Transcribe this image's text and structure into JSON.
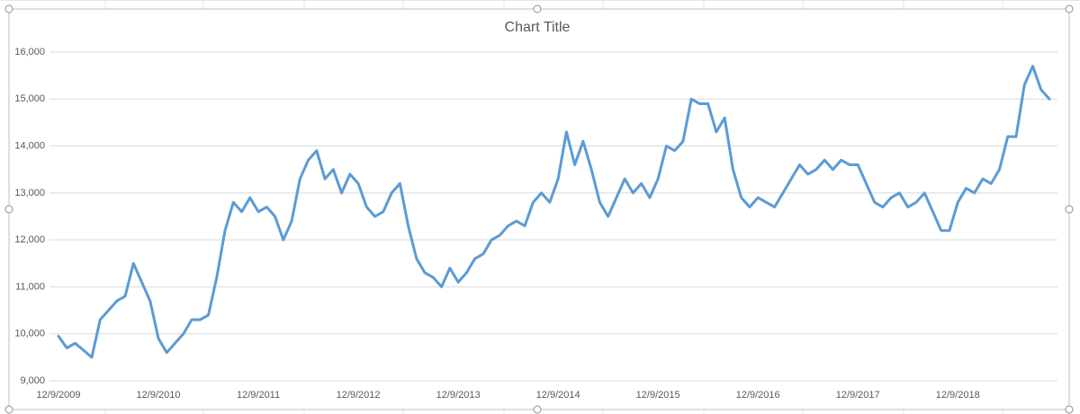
{
  "chart_data": {
    "type": "line",
    "title": "Chart Title",
    "color": "#5b9bd5",
    "grid": true,
    "x": [
      "12/9/2009",
      "1/9/2010",
      "2/9/2010",
      "3/9/2010",
      "4/9/2010",
      "5/9/2010",
      "6/9/2010",
      "7/9/2010",
      "8/9/2010",
      "9/9/2010",
      "10/9/2010",
      "11/9/2010",
      "12/9/2010",
      "1/9/2011",
      "2/9/2011",
      "3/9/2011",
      "4/9/2011",
      "5/9/2011",
      "6/9/2011",
      "7/9/2011",
      "8/9/2011",
      "9/9/2011",
      "10/9/2011",
      "11/9/2011",
      "12/9/2011",
      "1/9/2012",
      "2/9/2012",
      "3/9/2012",
      "4/9/2012",
      "5/9/2012",
      "6/9/2012",
      "7/9/2012",
      "8/9/2012",
      "9/9/2012",
      "10/9/2012",
      "11/9/2012",
      "12/9/2012",
      "1/9/2013",
      "2/9/2013",
      "3/9/2013",
      "4/9/2013",
      "5/9/2013",
      "6/9/2013",
      "7/9/2013",
      "8/9/2013",
      "9/9/2013",
      "10/9/2013",
      "11/9/2013",
      "12/9/2013",
      "1/9/2014",
      "2/9/2014",
      "3/9/2014",
      "4/9/2014",
      "5/9/2014",
      "6/9/2014",
      "7/9/2014",
      "8/9/2014",
      "9/9/2014",
      "10/9/2014",
      "11/9/2014",
      "12/9/2014",
      "1/9/2015",
      "2/9/2015",
      "3/9/2015",
      "4/9/2015",
      "5/9/2015",
      "6/9/2015",
      "7/9/2015",
      "8/9/2015",
      "9/9/2015",
      "10/9/2015",
      "11/9/2015",
      "12/9/2015",
      "1/9/2016",
      "2/9/2016",
      "3/9/2016",
      "4/9/2016",
      "5/9/2016",
      "6/9/2016",
      "7/9/2016",
      "8/9/2016",
      "9/9/2016",
      "10/9/2016",
      "11/9/2016",
      "12/9/2016",
      "1/9/2017",
      "2/9/2017",
      "3/9/2017",
      "4/9/2017",
      "5/9/2017",
      "6/9/2017",
      "7/9/2017",
      "8/9/2017",
      "9/9/2017",
      "10/9/2017",
      "11/9/2017",
      "12/9/2017",
      "1/9/2018",
      "2/9/2018",
      "3/9/2018",
      "4/9/2018",
      "5/9/2018",
      "6/9/2018",
      "7/9/2018",
      "8/9/2018",
      "9/9/2018",
      "10/9/2018",
      "11/9/2018",
      "12/9/2018",
      "1/9/2019",
      "2/9/2019",
      "3/9/2019",
      "4/9/2019",
      "5/9/2019",
      "6/9/2019",
      "7/9/2019",
      "8/9/2019",
      "9/9/2019",
      "10/9/2019",
      "11/9/2019"
    ],
    "values": [
      9950,
      9700,
      9800,
      9650,
      9500,
      10300,
      10500,
      10700,
      10800,
      11500,
      11100,
      10700,
      9900,
      9600,
      9800,
      10000,
      10300,
      10300,
      10400,
      11200,
      12200,
      12800,
      12600,
      12900,
      12600,
      12700,
      12500,
      12000,
      12400,
      13300,
      13700,
      13900,
      13300,
      13500,
      13000,
      13400,
      13200,
      12700,
      12500,
      12600,
      13000,
      13200,
      12300,
      11600,
      11300,
      11200,
      11000,
      11400,
      11100,
      11300,
      11600,
      11700,
      12000,
      12100,
      12300,
      12400,
      12300,
      12800,
      13000,
      12800,
      13300,
      14300,
      13600,
      14100,
      13500,
      12800,
      12500,
      12900,
      13300,
      13000,
      13200,
      12900,
      13300,
      14000,
      13900,
      14100,
      15000,
      14900,
      14900,
      14300,
      14600,
      13500,
      12900,
      12700,
      12900,
      12800,
      12700,
      13000,
      13300,
      13600,
      13400,
      13500,
      13700,
      13500,
      13700,
      13600,
      13600,
      13200,
      12800,
      12700,
      12900,
      13000,
      12700,
      12800,
      13000,
      12600,
      12200,
      12200,
      12800,
      13100,
      13000,
      13300,
      13200,
      13500,
      14200,
      14200,
      15300,
      15700,
      15200,
      15000
    ],
    "xticks": [
      "12/9/2009",
      "12/9/2010",
      "12/9/2011",
      "12/9/2012",
      "12/9/2013",
      "12/9/2014",
      "12/9/2015",
      "12/9/2016",
      "12/9/2017",
      "12/9/2018"
    ],
    "ylim": [
      9000,
      16000
    ],
    "yticks": [
      {
        "value": 9000,
        "label": "9,000"
      },
      {
        "value": 10000,
        "label": "10,000"
      },
      {
        "value": 11000,
        "label": "11,000"
      },
      {
        "value": 12000,
        "label": "12,000"
      },
      {
        "value": 13000,
        "label": "13,000"
      },
      {
        "value": 14000,
        "label": "14,000"
      },
      {
        "value": 15000,
        "label": "15,000"
      },
      {
        "value": 16000,
        "label": "16,000"
      }
    ]
  }
}
